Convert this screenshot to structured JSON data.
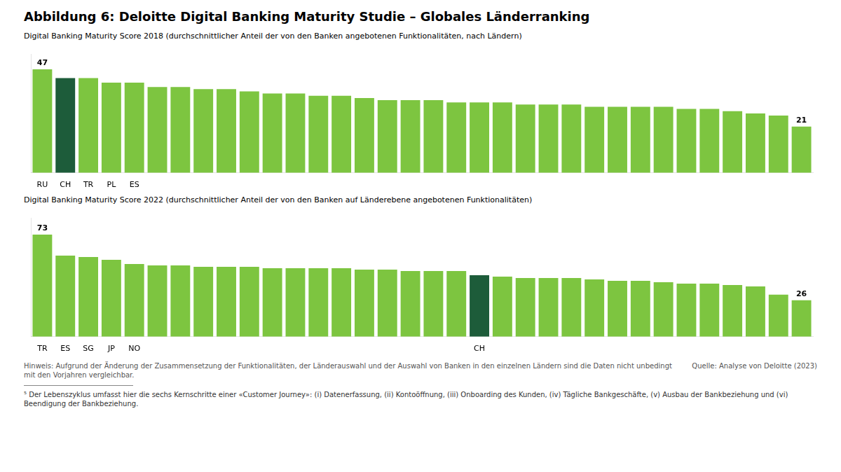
{
  "title": "Abbildung 6: Deloitte Digital Banking Maturity Studie – Globales Länderranking",
  "annotations": [
    "Hinweis: Aufgrund der Änderung der Zusammensetzung der Funktionalitäten, der Länderauswahl und der Auswahl von Banken in den einzelnen Ländern sind die Daten nicht unbedingt mit den Vorjahren vergleichbar.",
    "Quelle: Analyse von Deloitte (2023)",
    "⁵ Der Lebenszyklus umfasst hier die sechs Kernschritte einer «Customer Journey»: (i) Datenerfassung, (ii) Kontoöffnung, (iii) Onboarding des Kunden, (iv) Tägliche Bankgeschäfte, (v) Ausbau der Bankbeziehung und (vi) Beendigung der Bankbeziehung."
  ],
  "chart_data": [
    {
      "type": "bar",
      "subtitle": "Digital Banking Maturity Score 2018 (durchschnittlicher Anteil der von den Banken angebotenen Funktionalitäten, nach Ländern)",
      "categories": [
        "RU",
        "CH",
        "TR",
        "PL",
        "ES",
        null,
        null,
        null,
        null,
        null,
        null,
        null,
        null,
        null,
        null,
        null,
        null,
        null,
        null,
        null,
        null,
        null,
        null,
        null,
        null,
        null,
        null,
        null,
        null,
        null,
        null,
        null,
        null,
        null
      ],
      "values": [
        47,
        43,
        43,
        41,
        41,
        39,
        39,
        38,
        38,
        37,
        36,
        36,
        35,
        35,
        34,
        33,
        33,
        33,
        32,
        32,
        32,
        31,
        31,
        31,
        30,
        30,
        30,
        30,
        29,
        29,
        28,
        27,
        26,
        21
      ],
      "value_labels": [
        "47",
        null,
        null,
        null,
        null,
        null,
        null,
        null,
        null,
        null,
        null,
        null,
        null,
        null,
        null,
        null,
        null,
        null,
        null,
        null,
        null,
        null,
        null,
        null,
        null,
        null,
        null,
        null,
        null,
        null,
        null,
        null,
        null,
        "21"
      ],
      "colors": [
        "#7DC540",
        "#1D5C3A",
        "#7DC540",
        "#7DC540",
        "#7DC540",
        "#7DC540",
        "#7DC540",
        "#7DC540",
        "#7DC540",
        "#7DC540",
        "#7DC540",
        "#7DC540",
        "#7DC540",
        "#7DC540",
        "#7DC540",
        "#7DC540",
        "#7DC540",
        "#7DC540",
        "#7DC540",
        "#7DC540",
        "#7DC540",
        "#7DC540",
        "#7DC540",
        "#7DC540",
        "#7DC540",
        "#7DC540",
        "#7DC540",
        "#7DC540",
        "#7DC540",
        "#7DC540",
        "#7DC540",
        "#7DC540",
        "#7DC540",
        "#7DC540"
      ],
      "ylim": [
        0,
        54
      ],
      "grid": false,
      "tick_labels": "x"
    },
    {
      "type": "bar",
      "subtitle": "Digital Banking Maturity Score 2022 (durchschnittlicher Anteil der von den Banken auf Länderebene angebotenen Funktionalitäten)",
      "categories": [
        "TR",
        "ES",
        "SG",
        "JP",
        "NO",
        null,
        null,
        null,
        null,
        null,
        null,
        null,
        null,
        null,
        null,
        null,
        null,
        null,
        null,
        "CH",
        null,
        null,
        null,
        null,
        null,
        null,
        null,
        null,
        null,
        null,
        null,
        null,
        null,
        null
      ],
      "values": [
        73,
        58,
        57,
        55,
        52,
        51,
        51,
        50,
        50,
        50,
        49,
        49,
        49,
        49,
        48,
        48,
        47,
        47,
        47,
        44,
        43,
        42,
        42,
        42,
        41,
        40,
        40,
        39,
        38,
        38,
        37,
        36,
        30,
        26
      ],
      "value_labels": [
        "73",
        null,
        null,
        null,
        null,
        null,
        null,
        null,
        null,
        null,
        null,
        null,
        null,
        null,
        null,
        null,
        null,
        null,
        null,
        null,
        null,
        null,
        null,
        null,
        null,
        null,
        null,
        null,
        null,
        null,
        null,
        null,
        null,
        "26"
      ],
      "colors": [
        "#7DC540",
        "#7DC540",
        "#7DC540",
        "#7DC540",
        "#7DC540",
        "#7DC540",
        "#7DC540",
        "#7DC540",
        "#7DC540",
        "#7DC540",
        "#7DC540",
        "#7DC540",
        "#7DC540",
        "#7DC540",
        "#7DC540",
        "#7DC540",
        "#7DC540",
        "#7DC540",
        "#7DC540",
        "#1D5C3A",
        "#7DC540",
        "#7DC540",
        "#7DC540",
        "#7DC540",
        "#7DC540",
        "#7DC540",
        "#7DC540",
        "#7DC540",
        "#7DC540",
        "#7DC540",
        "#7DC540",
        "#7DC540",
        "#7DC540",
        "#7DC540"
      ],
      "ylim": [
        0,
        85
      ],
      "grid": false,
      "tick_labels": "x"
    }
  ]
}
